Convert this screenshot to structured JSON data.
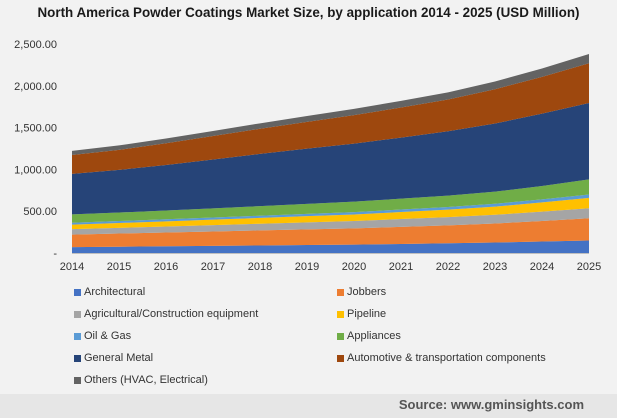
{
  "chart_data": {
    "type": "area",
    "stacked": true,
    "title": "North America Powder Coatings Market Size, by application 2014 - 2025 (USD Million)",
    "xlabel": "",
    "ylabel": "",
    "x": [
      "2014",
      "2015",
      "2016",
      "2017",
      "2018",
      "2019",
      "2020",
      "2021",
      "2022",
      "2023",
      "2024",
      "2025"
    ],
    "ylim": [
      0,
      2500
    ],
    "yticks": [
      0,
      500,
      1000,
      1500,
      2000,
      2500
    ],
    "ytick_labels": [
      "-",
      "500.00",
      "1,000.00",
      "1,500.00",
      "2,000.00",
      "2,500.00"
    ],
    "grid": false,
    "legend_position": "bottom",
    "series": [
      {
        "name": "Architectural",
        "color": "#4472c4",
        "values": [
          70,
          75,
          80,
          85,
          90,
          95,
          100,
          108,
          116,
          125,
          138,
          150
        ]
      },
      {
        "name": "Jobbers",
        "color": "#ed7d31",
        "values": [
          150,
          158,
          165,
          172,
          180,
          188,
          195,
          205,
          215,
          228,
          245,
          265
        ]
      },
      {
        "name": "Agricultural/Construction equipment",
        "color": "#a5a5a5",
        "values": [
          65,
          68,
          72,
          76,
          80,
          84,
          88,
          93,
          98,
          104,
          112,
          120
        ]
      },
      {
        "name": "Pipeline",
        "color": "#ffc000",
        "values": [
          55,
          58,
          62,
          66,
          70,
          74,
          78,
          84,
          90,
          98,
          110,
          125
        ]
      },
      {
        "name": "Oil & Gas",
        "color": "#5b9bd5",
        "values": [
          22,
          23,
          24,
          25,
          26,
          27,
          28,
          30,
          32,
          34,
          37,
          40
        ]
      },
      {
        "name": "Appliances",
        "color": "#70ad47",
        "values": [
          100,
          102,
          105,
          110,
          115,
          120,
          125,
          130,
          135,
          145,
          160,
          180
        ]
      },
      {
        "name": "General Metal",
        "color": "#264478",
        "values": [
          485,
          510,
          545,
          585,
          625,
          660,
          695,
          730,
          770,
          815,
          865,
          915
        ]
      },
      {
        "name": "Automotive & transportation components",
        "color": "#9e480e",
        "values": [
          225,
          240,
          260,
          280,
          300,
          320,
          340,
          360,
          380,
          410,
          440,
          475
        ]
      },
      {
        "name": "Others (HVAC, Electrical)",
        "color": "#636363",
        "values": [
          50,
          53,
          57,
          61,
          65,
          70,
          75,
          80,
          85,
          92,
          100,
          110
        ]
      }
    ]
  },
  "source": "Source: www.gminsights.com"
}
